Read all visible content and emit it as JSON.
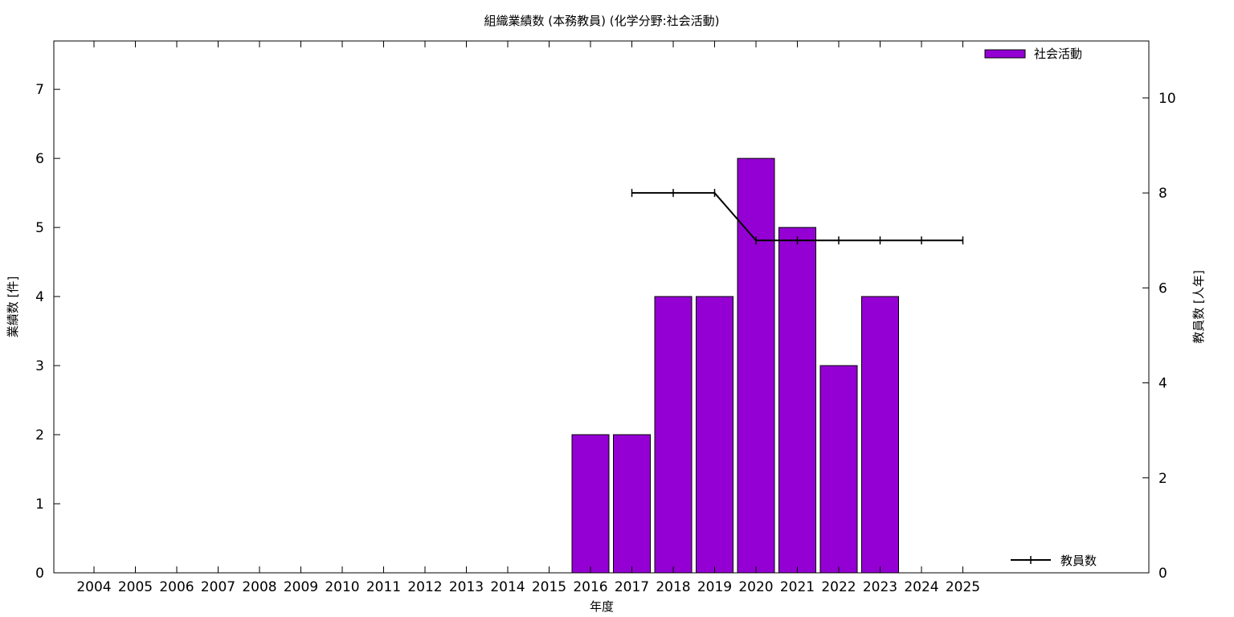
{
  "chart_data": {
    "type": "bar",
    "title": "組織業績数 (本務教員) (化学分野:社会活動)",
    "xlabel": "年度",
    "ylabel": "業績数 [件]",
    "y2label": "教員数 [人年]",
    "categories": [
      "2004",
      "2005",
      "2006",
      "2007",
      "2008",
      "2009",
      "2010",
      "2011",
      "2012",
      "2013",
      "2014",
      "2015",
      "2016",
      "2017",
      "2018",
      "2019",
      "2020",
      "2021",
      "2022",
      "2023",
      "2024",
      "2025"
    ],
    "ylim": [
      0,
      7.7
    ],
    "yticks": [
      0,
      1,
      2,
      3,
      4,
      5,
      6,
      7
    ],
    "y2lim": [
      0,
      11.2
    ],
    "y2ticks": [
      0,
      2,
      4,
      6,
      8,
      10
    ],
    "series": [
      {
        "name": "社会活動",
        "type": "bar",
        "axis": "left",
        "color": "#9400d3",
        "values": [
          null,
          null,
          null,
          null,
          null,
          null,
          null,
          null,
          null,
          null,
          null,
          null,
          2,
          2,
          4,
          4,
          6,
          5,
          3,
          4,
          null,
          null
        ]
      },
      {
        "name": "教員数",
        "type": "line",
        "axis": "right",
        "color": "#000000",
        "values": [
          null,
          null,
          null,
          null,
          null,
          null,
          null,
          null,
          null,
          null,
          null,
          null,
          null,
          8,
          8,
          8,
          7,
          7,
          7,
          7,
          7,
          7
        ]
      }
    ],
    "legend": [
      "top-right",
      "bottom-right"
    ],
    "grid": false
  }
}
